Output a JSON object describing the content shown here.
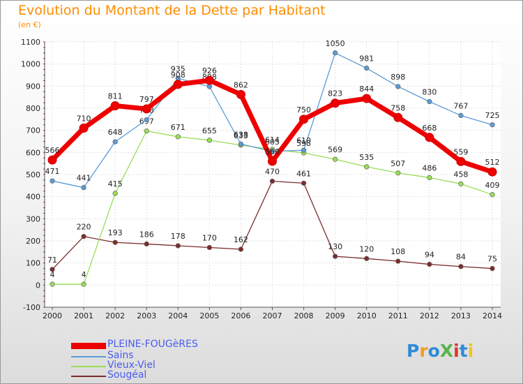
{
  "header": {
    "title": "Evolution du Montant de la Dette par Habitant",
    "unit": "(en €)"
  },
  "logo": {
    "text": "ProXiti",
    "colors": [
      "#2e8bd8",
      "#f39c1f",
      "#2e8bd8",
      "#58b54a",
      "#d9342b",
      "#2e8bd8",
      "#f0c419"
    ]
  },
  "chart_data": {
    "type": "line",
    "x": [
      2000,
      2001,
      2002,
      2003,
      2004,
      2005,
      2006,
      2007,
      2008,
      2009,
      2010,
      2011,
      2012,
      2013,
      2014
    ],
    "ylim": [
      -100,
      1100
    ],
    "yticks": [
      -100,
      0,
      100,
      200,
      300,
      400,
      500,
      600,
      700,
      800,
      900,
      1000,
      1100
    ],
    "grid": true,
    "legend_position": "bottom-left",
    "series": [
      {
        "name": "Sougéal",
        "color": "#7b2c2c",
        "values": [
          71,
          220,
          193,
          186,
          178,
          170,
          162,
          470,
          461,
          130,
          120,
          108,
          94,
          84,
          75
        ]
      },
      {
        "name": "Vieux-Viel",
        "color": "#99dd55",
        "values": [
          4,
          4,
          415,
          697,
          671,
          655,
          633,
          614,
          598,
          569,
          535,
          507,
          486,
          458,
          409
        ]
      },
      {
        "name": "Sains",
        "color": "#5b9bd5",
        "values": [
          471,
          441,
          648,
          748,
          935,
          898,
          638,
          605,
          610,
          1050,
          981,
          898,
          830,
          767,
          725
        ]
      },
      {
        "name": "PLEINE-FOUGèRES",
        "color": "#ee0000",
        "values": [
          566,
          710,
          811,
          797,
          908,
          926,
          862,
          560,
          750,
          823,
          844,
          758,
          668,
          559,
          512
        ]
      }
    ]
  }
}
